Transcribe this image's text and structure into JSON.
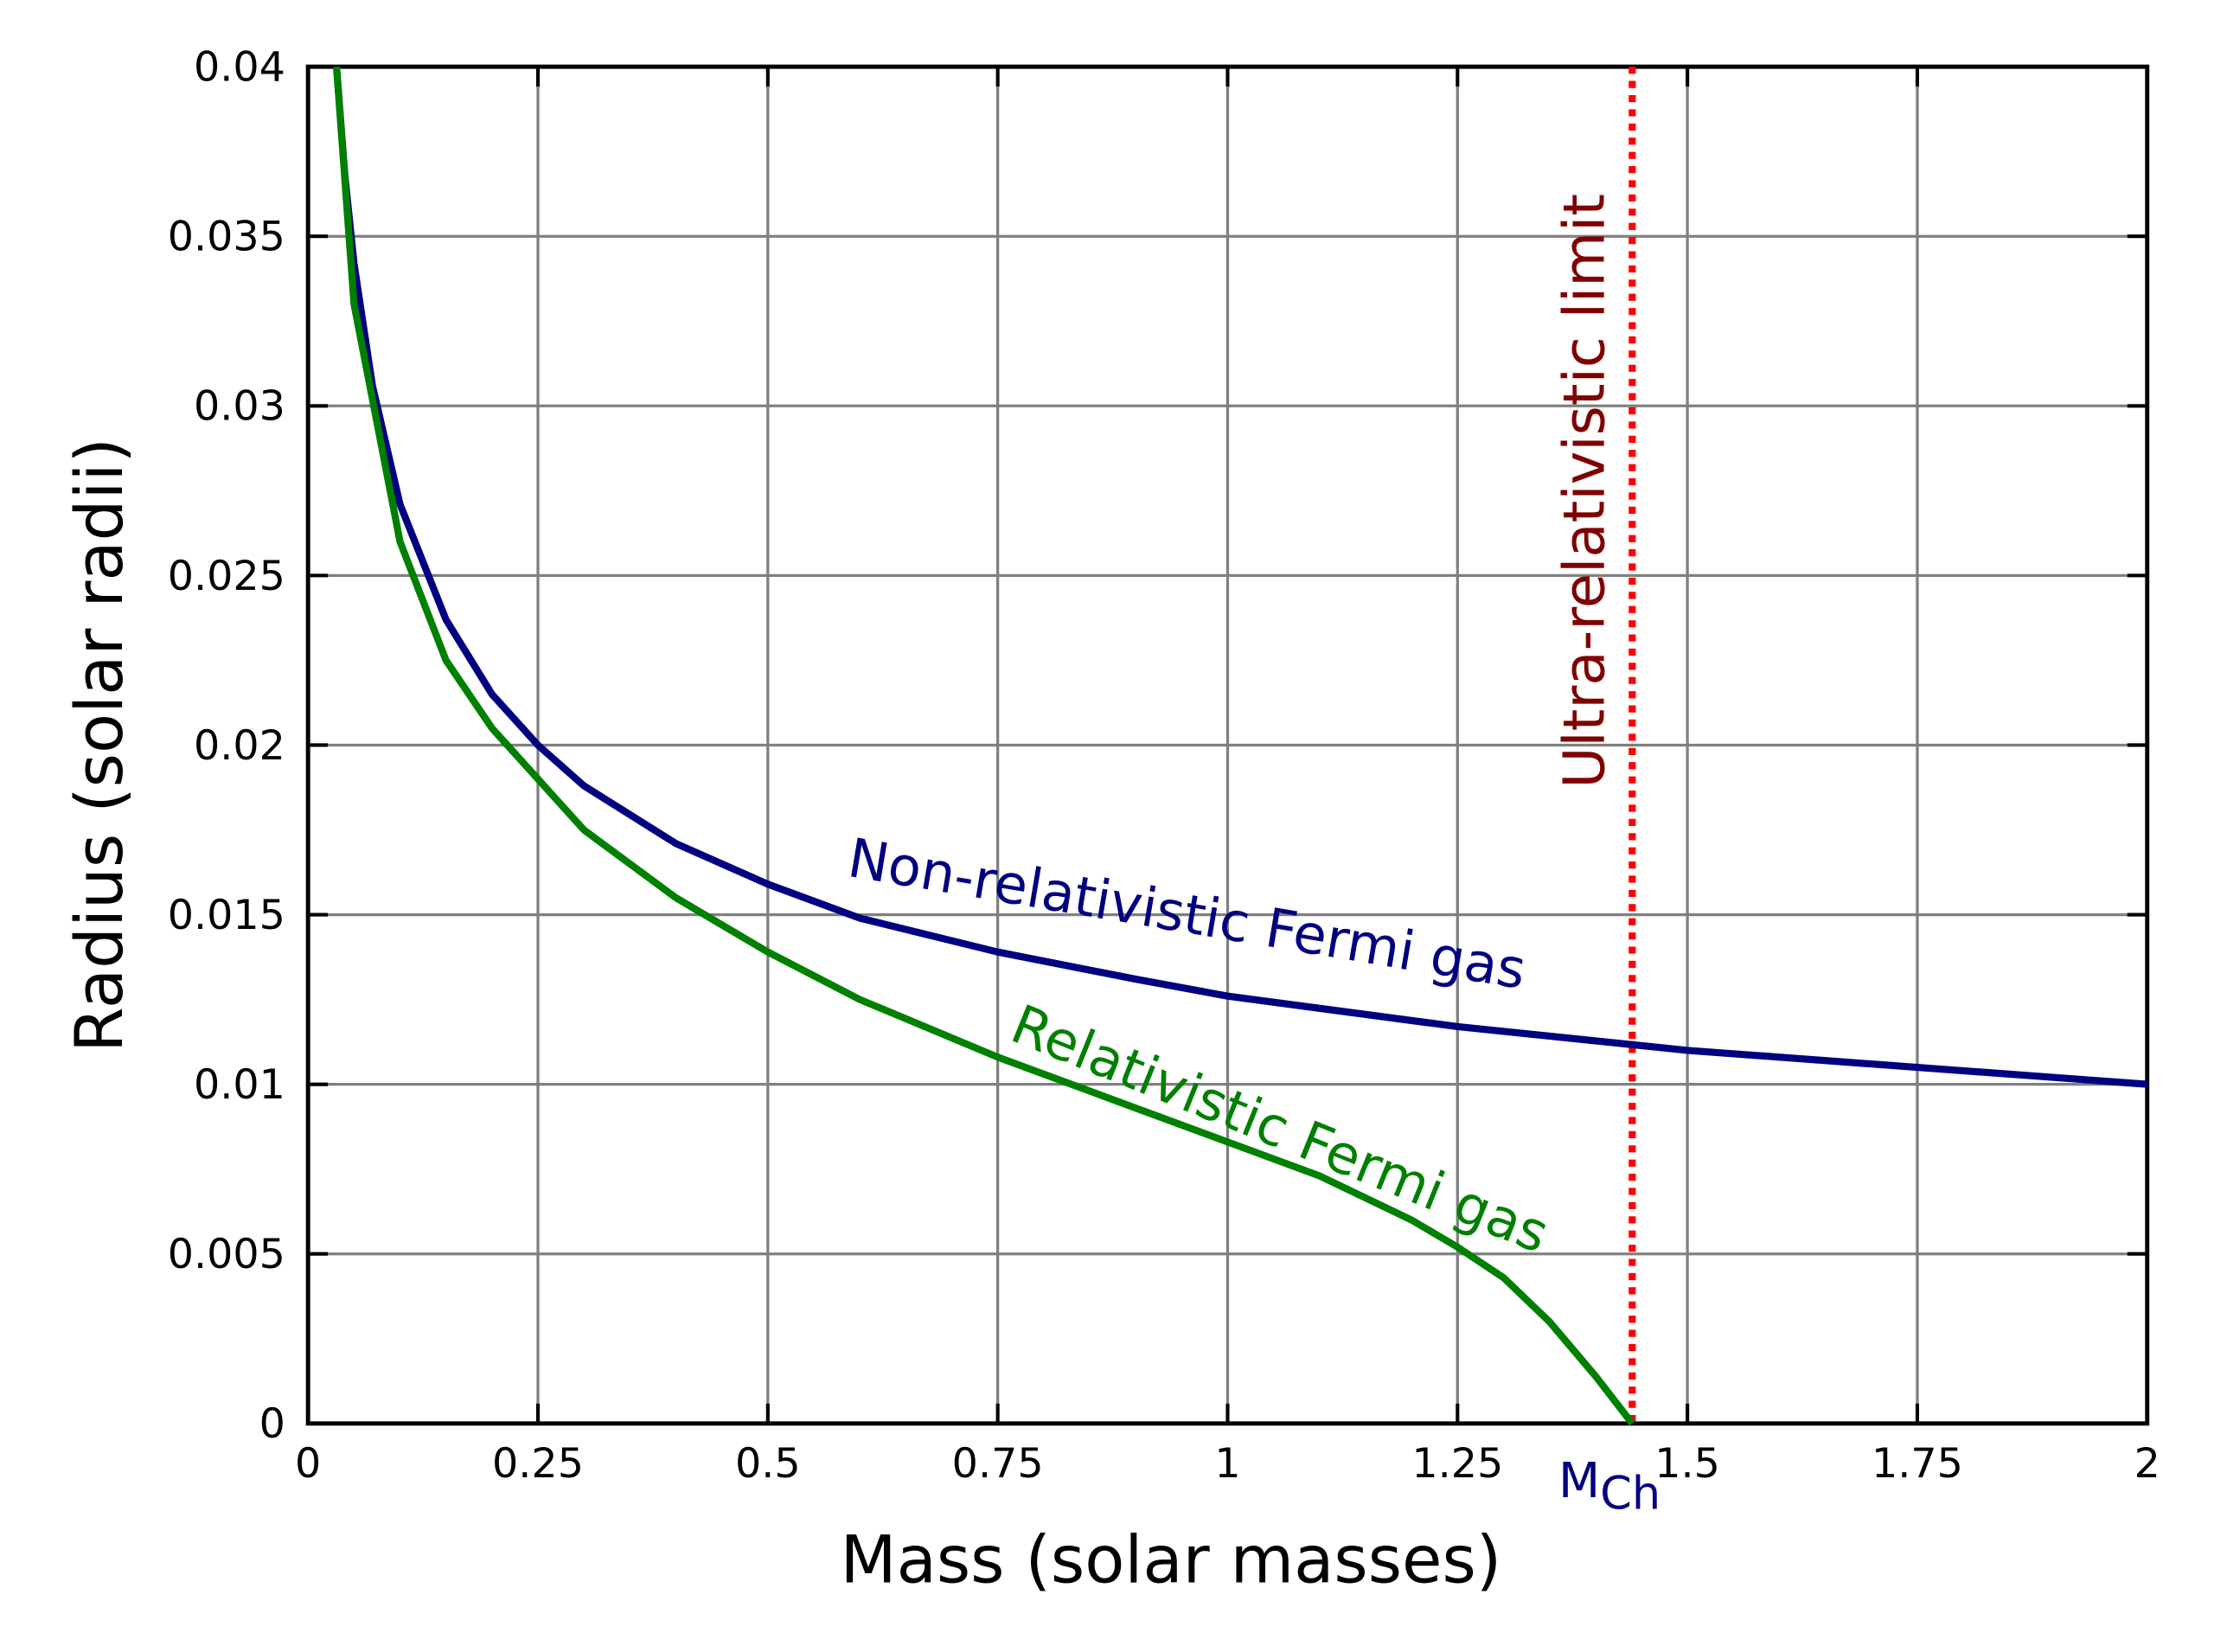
{
  "chart_data": {
    "type": "line",
    "xlabel": "Mass (solar masses)",
    "ylabel": "Radius (solar radii)",
    "xlim": [
      0,
      2
    ],
    "xticks": [
      0,
      0.25,
      0.5,
      0.75,
      1,
      1.25,
      1.5,
      1.75,
      2
    ],
    "ylim": [
      0,
      0.04
    ],
    "yticks": [
      0,
      0.005,
      0.01,
      0.015,
      0.02,
      0.025,
      0.03,
      0.035,
      0.04
    ],
    "grid": true,
    "series": [
      {
        "name": "Non-relativistic Fermi gas",
        "color": "#000080",
        "x": [
          0.031,
          0.04,
          0.05,
          0.07,
          0.1,
          0.15,
          0.2,
          0.25,
          0.3,
          0.4,
          0.5,
          0.6,
          0.75,
          0.9,
          1,
          1.25,
          1.5,
          1.75,
          2
        ],
        "values": [
          0.04,
          0.0368,
          0.0342,
          0.0306,
          0.0271,
          0.0237,
          0.0215,
          0.02,
          0.0188,
          0.0171,
          0.0159,
          0.0149,
          0.0139,
          0.0131,
          0.0126,
          0.0117,
          0.011,
          0.0105,
          0.01
        ]
      },
      {
        "name": "Relativistic Fermi gas",
        "color": "#008000",
        "x": [
          0.031,
          0.05,
          0.1,
          0.15,
          0.2,
          0.25,
          0.3,
          0.4,
          0.5,
          0.6,
          0.75,
          0.9,
          1,
          1.1,
          1.2,
          1.25,
          1.3,
          1.35,
          1.4,
          1.44
        ],
        "values": [
          0.04,
          0.033,
          0.026,
          0.0225,
          0.0205,
          0.019,
          0.0175,
          0.0155,
          0.0139,
          0.0125,
          0.0108,
          0.0093,
          0.0083,
          0.0073,
          0.006,
          0.0052,
          0.0043,
          0.003,
          0.0014,
          0
        ]
      }
    ],
    "limit": {
      "x": 1.44,
      "color": "#ff0000",
      "label": "Ultra-relativistic limit",
      "label_color": "#800000",
      "tick_label": "M",
      "tick_label_sub": "Ch",
      "tick_label_color": "#000080"
    }
  }
}
